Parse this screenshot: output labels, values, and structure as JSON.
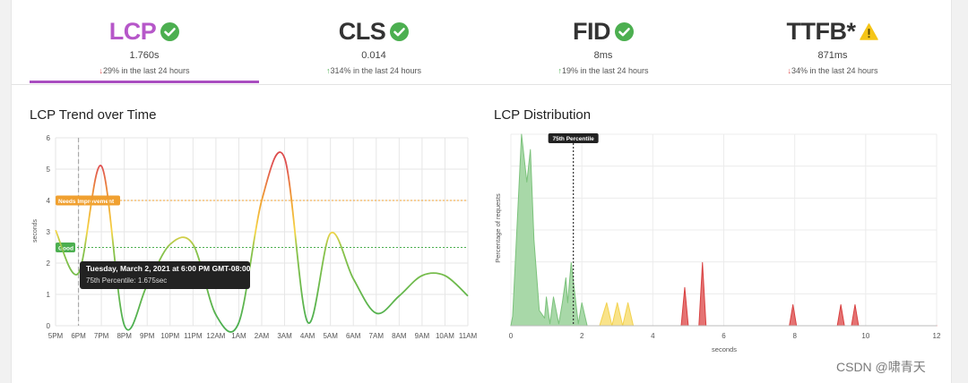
{
  "metrics": [
    {
      "name": "LCP",
      "status_icon": "check-circle-icon",
      "value": "1.760s",
      "delta": "29% in the last 24 hours",
      "direction": "down",
      "active": true
    },
    {
      "name": "CLS",
      "status_icon": "check-circle-icon",
      "value": "0.014",
      "delta": "314% in the last 24 hours",
      "direction": "up",
      "active": false
    },
    {
      "name": "FID",
      "status_icon": "check-circle-icon",
      "value": "8ms",
      "delta": "19% in the last 24 hours",
      "direction": "up",
      "active": false
    },
    {
      "name": "TTFB*",
      "status_icon": "warning-triangle-icon",
      "value": "871ms",
      "delta": "34% in the last 24 hours",
      "direction": "down",
      "active": false
    }
  ],
  "colors": {
    "good": "#4caf50",
    "warning": "#f5c518",
    "bad": "#e05252",
    "accent": "#a94ec0"
  },
  "trend": {
    "title": "LCP Trend over Time",
    "ylabel": "seconds",
    "threshold_needs_improvement_label": "Needs Improvement",
    "threshold_good_label": "Good",
    "tooltip": {
      "title": "Tuesday, March 2, 2021 at 6:00 PM GMT-08:00",
      "body": "75th Percentile: 1.675sec"
    }
  },
  "distribution": {
    "title": "LCP Distribution",
    "ylabel": "Percentage of requests",
    "xlabel": "seconds",
    "marker_label": "75th Percentile"
  },
  "chart_data": [
    {
      "type": "line",
      "title": "LCP Trend over Time",
      "ylabel": "seconds",
      "ylim": [
        0,
        6
      ],
      "yticks": [
        0,
        1,
        2,
        3,
        4,
        5,
        6
      ],
      "categories": [
        "5PM",
        "6PM",
        "7PM",
        "8PM",
        "9PM",
        "10PM",
        "11PM",
        "12AM",
        "1AM",
        "2AM",
        "3AM",
        "4AM",
        "5AM",
        "6AM",
        "7AM",
        "8AM",
        "9AM",
        "10AM",
        "11AM"
      ],
      "series": [
        {
          "values": [
            3.05,
            1.68,
            5.1,
            0.02,
            1.3,
            2.6,
            2.6,
            0.35,
            0.1,
            4.0,
            5.35,
            0.12,
            2.95,
            1.5,
            0.4,
            0.95,
            1.6,
            1.6,
            0.95
          ]
        }
      ],
      "thresholds": [
        {
          "label": "Needs Improvement",
          "value": 4.0
        },
        {
          "label": "Good",
          "value": 2.5
        }
      ],
      "marker_category": "6PM",
      "grid": true
    },
    {
      "type": "area",
      "title": "LCP Distribution",
      "xlabel": "seconds",
      "ylabel": "Percentage of requests",
      "xlim": [
        0,
        12
      ],
      "xticks": [
        0,
        2,
        4,
        6,
        8,
        10,
        12
      ],
      "marker": {
        "label": "75th Percentile",
        "x": 1.76
      },
      "series": [
        {
          "points": [
            [
              0,
              0
            ],
            [
              0.05,
              0.05
            ],
            [
              0.3,
              1.0
            ],
            [
              0.45,
              0.75
            ],
            [
              0.55,
              0.92
            ],
            [
              0.65,
              0.45
            ],
            [
              0.8,
              0.08
            ],
            [
              0.95,
              0.04
            ],
            [
              1.0,
              0.15
            ],
            [
              1.1,
              0.01
            ],
            [
              1.2,
              0.15
            ],
            [
              1.35,
              0.01
            ],
            [
              1.45,
              0.12
            ],
            [
              1.55,
              0.25
            ],
            [
              1.6,
              0.12
            ],
            [
              1.7,
              0.33
            ],
            [
              1.9,
              0.01
            ],
            [
              2.0,
              0.12
            ],
            [
              2.15,
              0.0
            ]
          ]
        },
        {
          "points": [
            [
              2.5,
              0.0
            ],
            [
              2.7,
              0.12
            ],
            [
              2.85,
              0.0
            ],
            [
              3.0,
              0.12
            ],
            [
              3.15,
              0.0
            ],
            [
              3.3,
              0.12
            ],
            [
              3.45,
              0.0
            ]
          ]
        },
        {
          "points": [
            [
              4.0,
              0.0
            ],
            [
              4.8,
              0.0
            ],
            [
              4.9,
              0.2
            ],
            [
              5.0,
              0.0
            ],
            [
              5.3,
              0.0
            ],
            [
              5.4,
              0.33
            ],
            [
              5.5,
              0.0
            ],
            [
              7.85,
              0.0
            ],
            [
              7.95,
              0.11
            ],
            [
              8.05,
              0.0
            ],
            [
              9.2,
              0.0
            ],
            [
              9.3,
              0.11
            ],
            [
              9.4,
              0.0
            ],
            [
              9.6,
              0.0
            ],
            [
              9.7,
              0.11
            ],
            [
              9.8,
              0.0
            ],
            [
              12,
              0.0
            ]
          ]
        }
      ],
      "grid": true
    }
  ],
  "watermark": "CSDN @啸青天"
}
